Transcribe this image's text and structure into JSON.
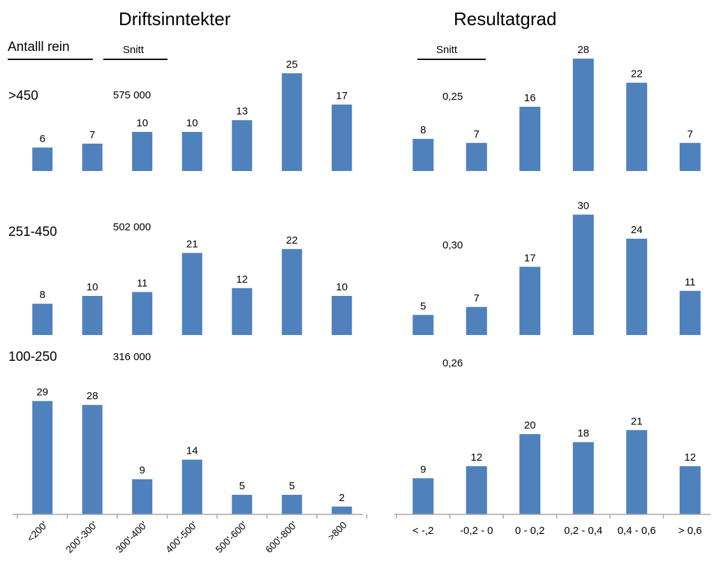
{
  "titles": {
    "left": "Driftsinntekter",
    "right": "Resultatgrad"
  },
  "headers": {
    "antall": "Antalll rein",
    "snitt_left": "Snitt",
    "snitt_right": "Snitt"
  },
  "groups": [
    {
      "label": ">450",
      "snitt_income": "575 000",
      "snitt_margin": "0,25"
    },
    {
      "label": "251-450",
      "snitt_income": "502 000",
      "snitt_margin": "0,30"
    },
    {
      "label": "100-250",
      "snitt_income": "316 000",
      "snitt_margin": "0,26"
    }
  ],
  "colors": {
    "bar": "#4f81bd",
    "axis": "#a6a6a6"
  },
  "chart_data": [
    {
      "type": "bar",
      "title": "Driftsinntekter",
      "categories": [
        "<200'",
        "200'-300'",
        "300'-400'",
        "400'-500'",
        "500'-600'",
        "600'-800'",
        ">800"
      ],
      "series": [
        {
          "name": ">450",
          "values": [
            6,
            7,
            10,
            10,
            13,
            25,
            17
          ]
        },
        {
          "name": "251-450",
          "values": [
            8,
            10,
            11,
            21,
            12,
            22,
            10
          ]
        },
        {
          "name": "100-250",
          "values": [
            29,
            28,
            9,
            14,
            5,
            5,
            2
          ]
        }
      ],
      "legend": "none",
      "grid": false
    },
    {
      "type": "bar",
      "title": "Resultatgrad",
      "categories": [
        "< -,2",
        "-0,2 - 0",
        "0 - 0,2",
        "0,2 - 0,4",
        "0,4 - 0,6",
        "> 0,6"
      ],
      "series": [
        {
          "name": ">450",
          "values": [
            8,
            7,
            16,
            28,
            22,
            7
          ]
        },
        {
          "name": "251-450",
          "values": [
            5,
            7,
            17,
            30,
            24,
            11
          ]
        },
        {
          "name": "100-250",
          "values": [
            9,
            12,
            20,
            18,
            21,
            12
          ]
        }
      ],
      "legend": "none",
      "grid": false
    }
  ]
}
